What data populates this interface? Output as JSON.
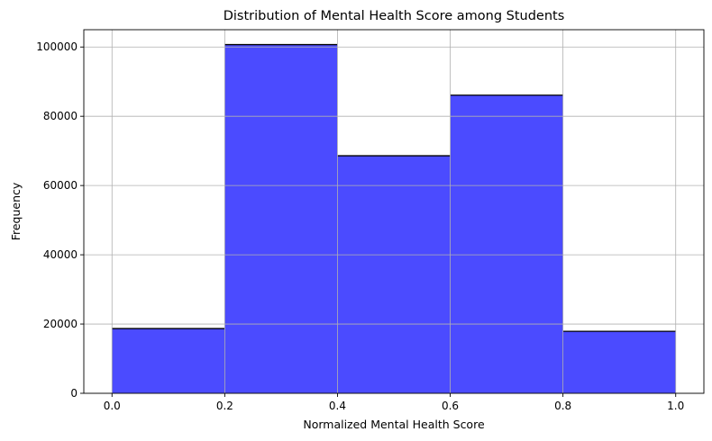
{
  "chart_data": {
    "type": "bar",
    "subtype": "histogram",
    "title": "Distribution of Mental Health Score among Students",
    "xlabel": "Normalized Mental Health Score",
    "ylabel": "Frequency",
    "bins": [
      {
        "start": 0.0,
        "end": 0.2,
        "value": 18700
      },
      {
        "start": 0.2,
        "end": 0.4,
        "value": 100700
      },
      {
        "start": 0.4,
        "end": 0.6,
        "value": 68600
      },
      {
        "start": 0.6,
        "end": 0.8,
        "value": 86100
      },
      {
        "start": 0.8,
        "end": 1.0,
        "value": 17900
      }
    ],
    "xlim": [
      -0.05,
      1.05
    ],
    "ylim": [
      0,
      105000
    ],
    "xticks": [
      0.0,
      0.2,
      0.4,
      0.6,
      0.8,
      1.0
    ],
    "xtick_labels": [
      "0.0",
      "0.2",
      "0.4",
      "0.6",
      "0.8",
      "1.0"
    ],
    "yticks": [
      0,
      20000,
      40000,
      60000,
      80000,
      100000
    ],
    "ytick_labels": [
      "0",
      "20000",
      "40000",
      "60000",
      "80000",
      "100000"
    ],
    "grid": true,
    "bar_color": "#4b4bff",
    "bar_top_edge_color": "#000000",
    "grid_color": "#b0b0b0"
  }
}
